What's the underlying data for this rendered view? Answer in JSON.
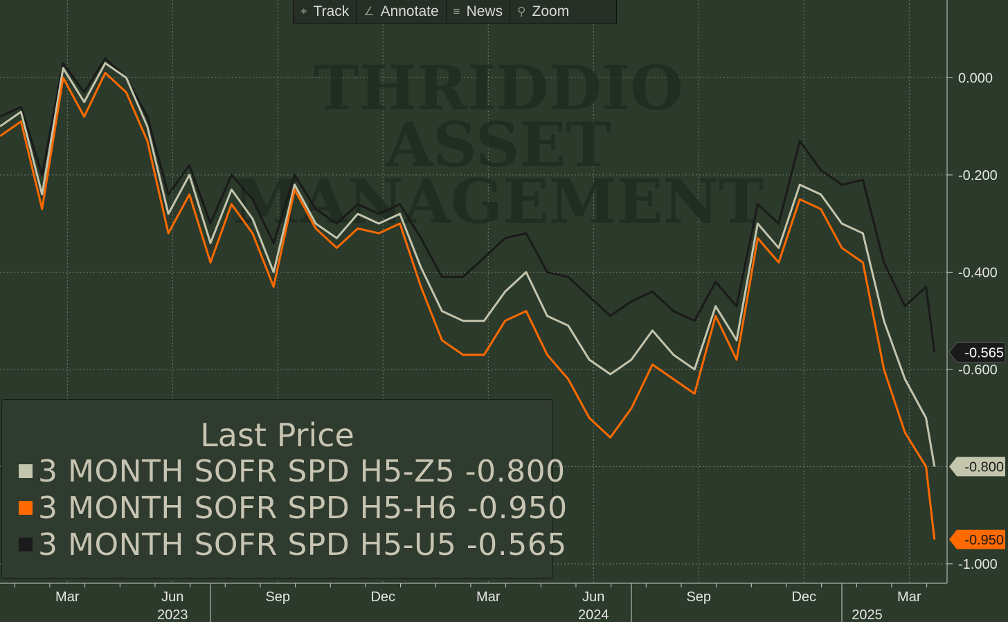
{
  "toolbar": {
    "buttons": [
      {
        "label": "Track",
        "icon": "crosshair-icon"
      },
      {
        "label": "Annotate",
        "icon": "pencil-icon"
      },
      {
        "label": "News",
        "icon": "list-icon"
      },
      {
        "label": "Zoom",
        "icon": "magnifier-icon"
      }
    ]
  },
  "watermark": [
    "THRIDDIO",
    "ASSET",
    "MANAGEMENT"
  ],
  "legend": {
    "title": "Last Price",
    "entries": [
      {
        "label": "3 MONTH SOFR SPD H5-Z5 -0.800",
        "color": "#c4c5ad"
      },
      {
        "label": "3 MONTH SOFR SPD H5-H6 -0.950",
        "color": "#ff6a00"
      },
      {
        "label": "3 MONTH SOFR SPD H5-U5 -0.565",
        "color": "#1a1a1a"
      }
    ]
  },
  "colors": {
    "background": "#2b3a2b",
    "grid": "#6f7e6f",
    "axis_text": "#e6e6e6",
    "series_z5": "#c4c5ad",
    "series_h6": "#ff6a00",
    "series_u5": "#1a1a1a"
  },
  "chart_data": {
    "type": "line",
    "title": "",
    "xlabel": "",
    "ylabel": "",
    "ylim": [
      -1.04,
      0.16
    ],
    "yticks": [
      "0.000",
      "-0.200",
      "-0.400",
      "-0.600",
      "-1.000"
    ],
    "ytick_values": [
      0.0,
      -0.2,
      -0.4,
      -0.6,
      -1.0
    ],
    "y_gridlines": [
      0.0,
      -0.2,
      -0.4,
      -0.6,
      -0.8,
      -1.0
    ],
    "xlim": [
      2023.0,
      2025.25
    ],
    "xticks": [
      {
        "label": "Mar",
        "x": 2023.16
      },
      {
        "label": "Jun",
        "x": 2023.41
      },
      {
        "label": "Sep",
        "x": 2023.66
      },
      {
        "label": "Dec",
        "x": 2023.91
      },
      {
        "label": "Mar",
        "x": 2024.16
      },
      {
        "label": "Jun",
        "x": 2024.41
      },
      {
        "label": "Sep",
        "x": 2024.66
      },
      {
        "label": "Dec",
        "x": 2024.91
      },
      {
        "label": "Mar",
        "x": 2025.16
      }
    ],
    "year_labels": [
      {
        "label": "2023",
        "x": 2023.41
      },
      {
        "label": "2024",
        "x": 2024.41
      },
      {
        "label": "2025",
        "x": 2025.06
      }
    ],
    "year_dividers": [
      2023.5,
      2024.5,
      2025.0
    ],
    "x": [
      2023.0,
      2023.05,
      2023.1,
      2023.15,
      2023.2,
      2023.25,
      2023.3,
      2023.35,
      2023.4,
      2023.45,
      2023.5,
      2023.55,
      2023.6,
      2023.65,
      2023.7,
      2023.75,
      2023.8,
      2023.85,
      2023.9,
      2023.95,
      2024.0,
      2024.05,
      2024.1,
      2024.15,
      2024.2,
      2024.25,
      2024.3,
      2024.35,
      2024.4,
      2024.45,
      2024.5,
      2024.55,
      2024.6,
      2024.65,
      2024.7,
      2024.75,
      2024.8,
      2024.85,
      2024.9,
      2024.95,
      2025.0,
      2025.05,
      2025.1,
      2025.15,
      2025.2,
      2025.22
    ],
    "series": [
      {
        "name": "3 MONTH SOFR SPD H5-Z5",
        "last": -0.8,
        "color": "#c4c5ad",
        "values": [
          -0.1,
          -0.07,
          -0.24,
          0.02,
          -0.05,
          0.03,
          0.0,
          -0.1,
          -0.28,
          -0.2,
          -0.34,
          -0.23,
          -0.29,
          -0.4,
          -0.22,
          -0.3,
          -0.33,
          -0.28,
          -0.3,
          -0.28,
          -0.39,
          -0.48,
          -0.5,
          -0.5,
          -0.44,
          -0.4,
          -0.49,
          -0.51,
          -0.58,
          -0.61,
          -0.58,
          -0.52,
          -0.57,
          -0.6,
          -0.47,
          -0.54,
          -0.3,
          -0.35,
          -0.22,
          -0.24,
          -0.3,
          -0.32,
          -0.5,
          -0.62,
          -0.7,
          -0.8
        ]
      },
      {
        "name": "3 MONTH SOFR SPD H5-H6",
        "last": -0.95,
        "color": "#ff6a00",
        "values": [
          -0.12,
          -0.09,
          -0.27,
          0.0,
          -0.08,
          0.01,
          -0.03,
          -0.13,
          -0.32,
          -0.24,
          -0.38,
          -0.26,
          -0.32,
          -0.43,
          -0.23,
          -0.31,
          -0.35,
          -0.31,
          -0.32,
          -0.3,
          -0.43,
          -0.54,
          -0.57,
          -0.57,
          -0.5,
          -0.48,
          -0.57,
          -0.62,
          -0.7,
          -0.74,
          -0.68,
          -0.59,
          -0.62,
          -0.65,
          -0.49,
          -0.58,
          -0.33,
          -0.38,
          -0.25,
          -0.27,
          -0.35,
          -0.38,
          -0.6,
          -0.73,
          -0.8,
          -0.95
        ]
      },
      {
        "name": "3 MONTH SOFR SPD H5-U5",
        "last": -0.565,
        "color": "#1a1a1a",
        "values": [
          -0.08,
          -0.06,
          -0.2,
          0.03,
          -0.03,
          0.04,
          0.0,
          -0.08,
          -0.24,
          -0.18,
          -0.3,
          -0.2,
          -0.25,
          -0.34,
          -0.2,
          -0.27,
          -0.3,
          -0.26,
          -0.28,
          -0.26,
          -0.33,
          -0.41,
          -0.41,
          -0.37,
          -0.33,
          -0.32,
          -0.4,
          -0.41,
          -0.45,
          -0.49,
          -0.46,
          -0.44,
          -0.48,
          -0.5,
          -0.42,
          -0.47,
          -0.26,
          -0.3,
          -0.13,
          -0.19,
          -0.22,
          -0.21,
          -0.38,
          -0.47,
          -0.43,
          -0.565
        ]
      }
    ]
  }
}
